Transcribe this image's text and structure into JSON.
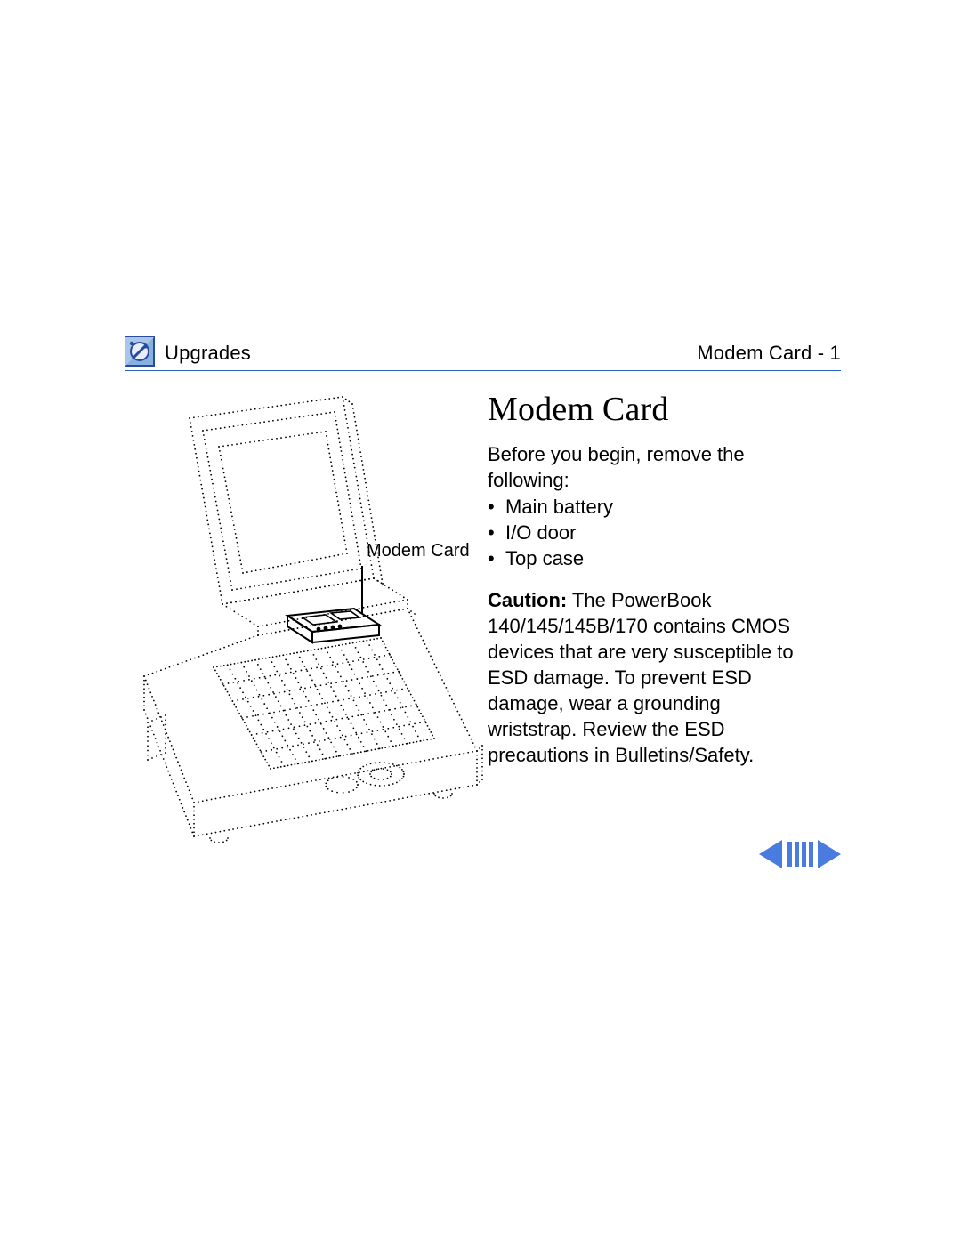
{
  "colors": {
    "rule": "#2a63c8",
    "icon_border": "#2a4aa0",
    "icon_fill_tl": "#88b2de",
    "icon_fill_br": "#5a8fd0",
    "icon_inner": "#e8eef8",
    "nav_arrow": "#4a7ce0",
    "nav_bars": "#4a7ce0",
    "text": "#000000",
    "bg": "#ffffff"
  },
  "header": {
    "section": "Upgrades",
    "page_label": "Modem Card - 1"
  },
  "title": "Modem Card",
  "intro": "Before you begin, remove the following:",
  "bullets": [
    "Main battery",
    "I/O door",
    "Top case"
  ],
  "caution": {
    "label": "Caution:",
    "text": " The PowerBook 140/145/145B/170 contains CMOS devices that are very susceptible to ESD damage. To prevent ESD damage, wear a grounding wriststrap. Review the ESD precautions in Bulletins/Safety."
  },
  "callout_label": "Modem Card",
  "diagram": {
    "type": "line-art",
    "description": "Isometric dotted-line illustration of an open PowerBook laptop with a small Modem Card highlighted above the keyboard hinge area, labeled by a callout line.",
    "stroke": "#000000",
    "dot_radius": 0.9,
    "dot_gap": 5
  }
}
